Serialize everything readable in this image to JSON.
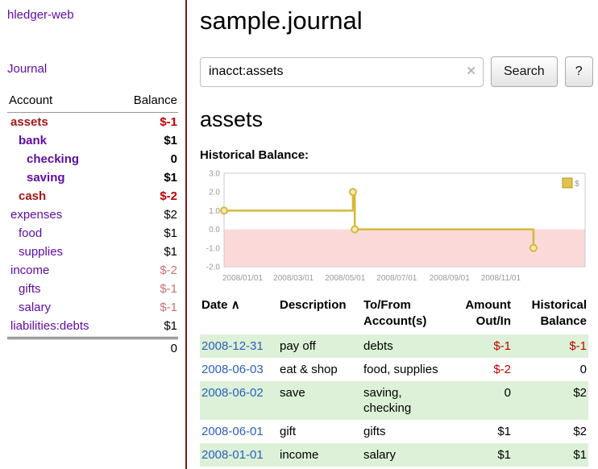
{
  "app": {
    "title": "hledger-web"
  },
  "colors": {
    "accent_purple": "#5e0ba5",
    "negative_red": "#c00000",
    "soft_negative_red": "#cf7070",
    "selected_account_maroon": "#a01818",
    "date_link_blue": "#2a5fbf",
    "row_stripe_green": "#dcf1d7",
    "chart_line_gold": "#d6b83a",
    "chart_negative_region_pink": "#fcd9d9",
    "sidebar_border_maroon": "#7a1b1b"
  },
  "sidebar": {
    "journal_link": "Journal",
    "header": {
      "account": "Account",
      "balance": "Balance"
    },
    "accounts": [
      {
        "name": "assets",
        "balance": "$-1"
      },
      {
        "name": "bank",
        "balance": "$1"
      },
      {
        "name": "checking",
        "balance": "0"
      },
      {
        "name": "saving",
        "balance": "$1"
      },
      {
        "name": "cash",
        "balance": "$-2"
      },
      {
        "name": "expenses",
        "balance": "$2"
      },
      {
        "name": "food",
        "balance": "$1"
      },
      {
        "name": "supplies",
        "balance": "$1"
      },
      {
        "name": "income",
        "balance": "$-2"
      },
      {
        "name": "gifts",
        "balance": "$-1"
      },
      {
        "name": "salary",
        "balance": "$-1"
      },
      {
        "name": "liabilities:debts",
        "balance": "$1"
      }
    ],
    "total": "0"
  },
  "main": {
    "title": "sample.journal",
    "search": {
      "value": "inacct:assets",
      "clear": "✕",
      "button": "Search",
      "help": "?"
    },
    "heading": "assets",
    "chart_label": "Historical Balance:"
  },
  "chart_data": {
    "type": "line",
    "title": "Historical Balance:",
    "legend": [
      "$"
    ],
    "legend_position": "top-right",
    "ylim": [
      -2,
      3
    ],
    "yticks": [
      "3.0",
      "2.0",
      "1.0",
      "0.0",
      "-1.0",
      "-2.0"
    ],
    "xticks": [
      "2008/01/01",
      "2008/03/01",
      "2008/05/01",
      "2008/07/01",
      "2008/09/01",
      "2008/11/01"
    ],
    "xtick_pos": [
      0,
      0.141,
      0.284,
      0.427,
      0.573,
      0.716
    ],
    "step": true,
    "negative_region_color": "#fcd9d9",
    "line_color": "#d6b83a",
    "series": [
      {
        "name": "$",
        "points": [
          {
            "date": "2008-01-01",
            "x": 0.0,
            "y": 1
          },
          {
            "date": "2008-06-01",
            "x": 0.357,
            "y": 2
          },
          {
            "date": "2008-06-03",
            "x": 0.362,
            "y": 0
          },
          {
            "date": "2008-12-31",
            "x": 0.857,
            "y": -1
          }
        ]
      }
    ]
  },
  "register": {
    "headers": {
      "date": "Date",
      "sort_icon": "∧",
      "description": "Description",
      "account_line1": "To/From",
      "account_line2": "Account(s)",
      "amount_line1": "Amount",
      "amount_line2": "Out/In",
      "balance_line1": "Historical",
      "balance_line2": "Balance"
    },
    "rows": [
      {
        "date": "2008-12-31",
        "description": "pay off",
        "accounts": "debts",
        "amount": "$-1",
        "balance": "$-1"
      },
      {
        "date": "2008-06-03",
        "description": "eat & shop",
        "accounts": "food, supplies",
        "amount": "$-2",
        "balance": "0"
      },
      {
        "date": "2008-06-02",
        "description": "save",
        "accounts": "saving, checking",
        "amount": "0",
        "balance": "$2"
      },
      {
        "date": "2008-06-01",
        "description": "gift",
        "accounts": "gifts",
        "amount": "$1",
        "balance": "$2"
      },
      {
        "date": "2008-01-01",
        "description": "income",
        "accounts": "salary",
        "amount": "$1",
        "balance": "$1"
      }
    ]
  }
}
